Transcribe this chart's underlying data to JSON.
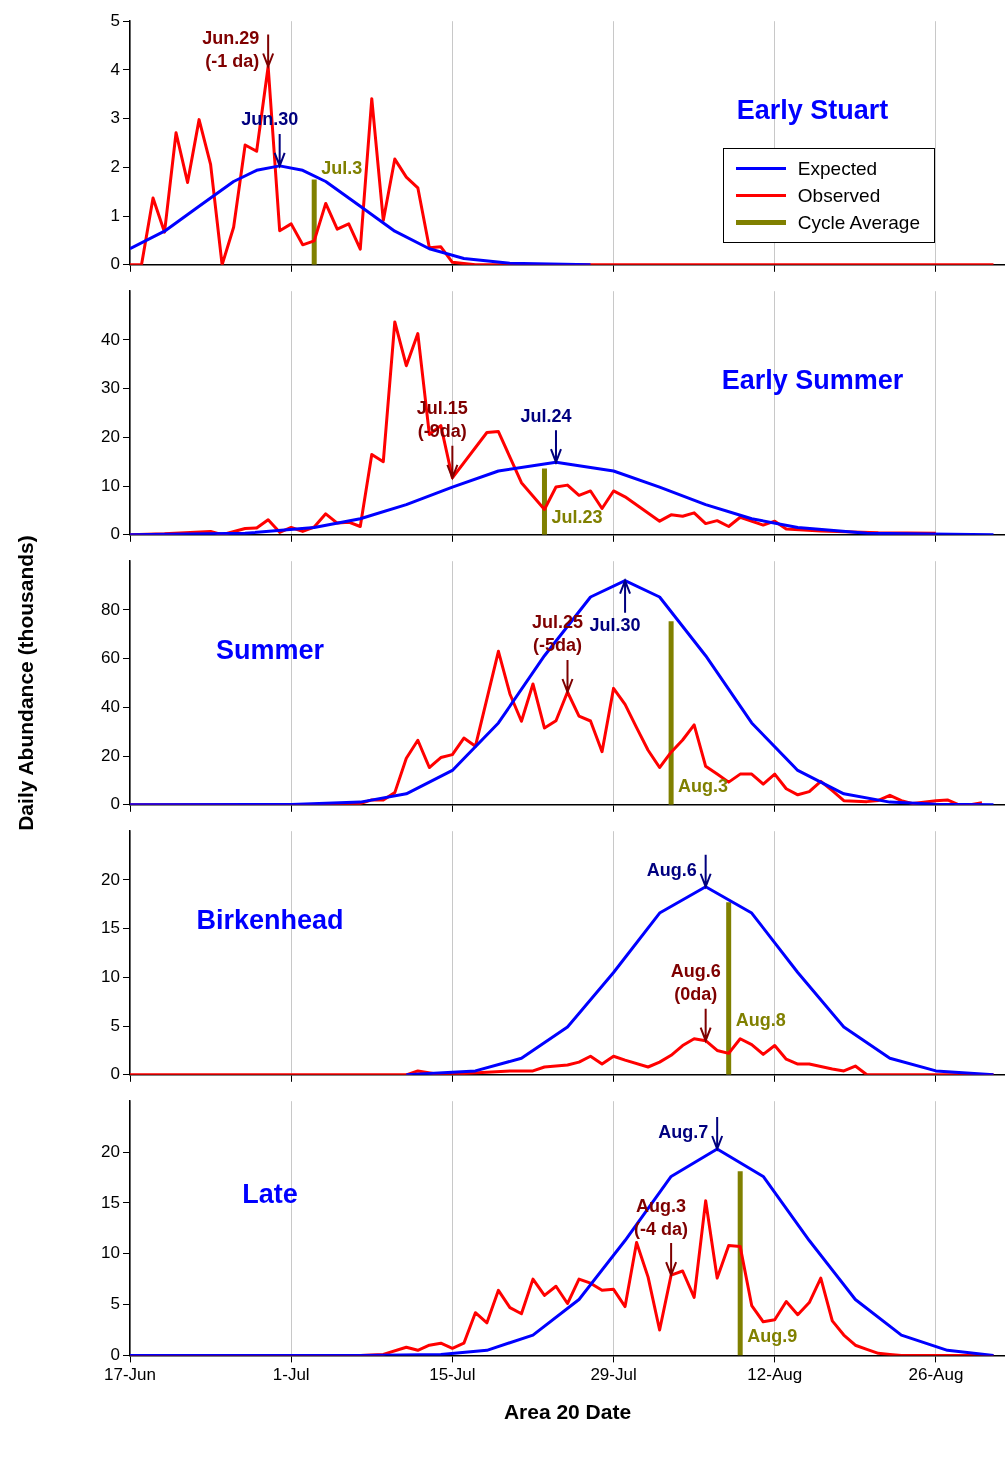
{
  "chart_data": [
    {
      "type": "line",
      "title": "Early Stuart",
      "legend": "right",
      "grid": "x",
      "marker": "none",
      "tick_labels": "y",
      "xlim": [
        "--06-17",
        "--09-01"
      ],
      "xticks": [
        {
          "value": "--06-17",
          "label": null
        },
        {
          "value": "--07-01",
          "label": null
        },
        {
          "value": "--07-15",
          "label": null
        },
        {
          "value": "--07-29",
          "label": null
        },
        {
          "value": "--08-12",
          "label": null
        },
        {
          "value": "--08-26",
          "label": null
        }
      ],
      "ylim": [
        0,
        5
      ],
      "yticks": [
        0,
        1,
        2,
        3,
        4,
        5
      ],
      "series": [
        {
          "name": "Expected",
          "color": "#0000ff",
          "x": [
            "--06-17",
            "--06-20",
            "--06-23",
            "--06-26",
            "--06-28",
            "--06-30",
            "--07-02",
            "--07-04",
            "--07-07",
            "--07-10",
            "--07-13",
            "--07-16",
            "--07-20",
            "--07-27"
          ],
          "values": [
            0.33,
            0.69,
            1.2,
            1.71,
            1.94,
            2.03,
            1.94,
            1.71,
            1.2,
            0.69,
            0.33,
            0.13,
            0.03,
            0
          ]
        },
        {
          "name": "Observed",
          "color": "#ff0000",
          "x": [
            "--06-17",
            "--06-18",
            "--06-19",
            "--06-20",
            "--06-21",
            "--06-22",
            "--06-23",
            "--06-24",
            "--06-25",
            "--06-26",
            "--06-27",
            "--06-28",
            "--06-29",
            "--06-30",
            "--07-01",
            "--07-02",
            "--07-03",
            "--07-04",
            "--07-05",
            "--07-06",
            "--07-07",
            "--07-08",
            "--07-09",
            "--07-10",
            "--07-11",
            "--07-12",
            "--07-13",
            "--07-14",
            "--07-15",
            "--07-17",
            "--08-31"
          ],
          "values": [
            0,
            0,
            1.37,
            0.67,
            2.71,
            1.69,
            2.98,
            2.06,
            0,
            0.77,
            2.46,
            2.33,
            4.07,
            0.7,
            0.84,
            0.41,
            0.49,
            1.26,
            0.73,
            0.84,
            0.32,
            3.41,
            0.91,
            2.17,
            1.8,
            1.58,
            0.35,
            0.37,
            0.05,
            0,
            0
          ]
        },
        {
          "name": "Cycle Average",
          "color": "#808000",
          "x": [
            "--07-03",
            "--07-03"
          ],
          "values": [
            0,
            1.75
          ]
        }
      ],
      "annotations": [
        {
          "text": "Jun.30",
          "x": "--06-30",
          "y": 2.03
        },
        {
          "text": "Jun.29\n(-1 da)",
          "x": "--06-29",
          "y": 4.07
        },
        {
          "text": "Jul.3",
          "x": "--07-03",
          "y": 1.75
        }
      ]
    },
    {
      "type": "line",
      "title": "Early Summer",
      "grid": "x",
      "marker": "none",
      "tick_labels": "y",
      "xlim": [
        "--06-17",
        "--09-01"
      ],
      "xticks": [
        {
          "value": "--06-17",
          "label": null
        },
        {
          "value": "--07-01",
          "label": null
        },
        {
          "value": "--07-15",
          "label": null
        },
        {
          "value": "--07-29",
          "label": null
        },
        {
          "value": "--08-12",
          "label": null
        },
        {
          "value": "--08-26",
          "label": null
        }
      ],
      "ylim": [
        0,
        50
      ],
      "yticks": [
        0,
        10,
        20,
        30,
        40
      ],
      "series": [
        {
          "color": "#0000ff",
          "x": [
            "--06-17",
            "--06-27",
            "--07-03",
            "--07-07",
            "--07-11",
            "--07-15",
            "--07-19",
            "--07-24",
            "--07-29",
            "--08-02",
            "--08-06",
            "--08-10",
            "--08-14",
            "--08-20",
            "--08-31"
          ],
          "values": [
            0,
            0.3,
            1.5,
            3.3,
            6.2,
            9.8,
            13.1,
            14.9,
            13.1,
            9.8,
            6.2,
            3.3,
            1.5,
            0.3,
            0
          ]
        },
        {
          "color": "#ff0000",
          "x": [
            "--06-17",
            "--06-20",
            "--06-24",
            "--06-25",
            "--06-27",
            "--06-28",
            "--06-29",
            "--06-30",
            "--07-01",
            "--07-02",
            "--07-03",
            "--07-04",
            "--07-05",
            "--07-06",
            "--07-07",
            "--07-08",
            "--07-09",
            "--07-10",
            "--07-11",
            "--07-12",
            "--07-13",
            "--07-14",
            "--07-15",
            "--07-18",
            "--07-19",
            "--07-21",
            "--07-23",
            "--07-24",
            "--07-25",
            "--07-26",
            "--07-27",
            "--07-28",
            "--07-29",
            "--07-30",
            "--08-02",
            "--08-03",
            "--08-04",
            "--08-05",
            "--08-06",
            "--08-07",
            "--08-08",
            "--08-09",
            "--08-11",
            "--08-12",
            "--08-13",
            "--08-16",
            "--08-21",
            "--08-26"
          ],
          "values": [
            0,
            0.2,
            0.7,
            0,
            1.3,
            1.4,
            3.1,
            0.5,
            1.5,
            0.7,
            1.6,
            4.3,
            2.4,
            2.6,
            1.7,
            16.5,
            15,
            43.7,
            34.7,
            41.3,
            20.6,
            22.4,
            11.7,
            21,
            21.2,
            10.7,
            5.2,
            9.8,
            10.2,
            8.1,
            9,
            5.4,
            9,
            7.8,
            2.8,
            4.1,
            3.8,
            4.5,
            2.3,
            2.9,
            1.7,
            3.6,
            2,
            2.8,
            1.2,
            0.8,
            0.4,
            0.3
          ]
        },
        {
          "color": "#808000",
          "x": [
            "--07-23",
            "--07-23"
          ],
          "values": [
            0,
            13.6
          ]
        }
      ],
      "annotations": [
        {
          "text": "Jul.24",
          "x": "--07-24",
          "y": 14.9
        },
        {
          "text": "Jul.15\n(-9da)",
          "x": "--07-15",
          "y": 11.7
        },
        {
          "text": "Jul.23",
          "x": "--07-23",
          "y": 1.1
        }
      ]
    },
    {
      "type": "line",
      "title": "Summer",
      "ylabel": "Daily Abundance (thousands)",
      "grid": "x",
      "marker": "none",
      "tick_labels": "y",
      "xlim": [
        "--06-17",
        "--09-01"
      ],
      "xticks": [
        {
          "value": "--06-17",
          "label": null
        },
        {
          "value": "--07-01",
          "label": null
        },
        {
          "value": "--07-15",
          "label": null
        },
        {
          "value": "--07-29",
          "label": null
        },
        {
          "value": "--08-12",
          "label": null
        },
        {
          "value": "--08-26",
          "label": null
        }
      ],
      "ylim": [
        0,
        100
      ],
      "yticks": [
        0,
        20,
        40,
        60,
        80
      ],
      "series": [
        {
          "color": "#0000ff",
          "x": [
            "--06-17",
            "--07-01",
            "--07-07",
            "--07-11",
            "--07-15",
            "--07-19",
            "--07-23",
            "--07-27",
            "--07-30",
            "--08-02",
            "--08-06",
            "--08-10",
            "--08-14",
            "--08-18",
            "--08-22",
            "--08-26",
            "--08-31"
          ],
          "values": [
            0,
            0.1,
            1.1,
            4.5,
            14.1,
            33.6,
            61.2,
            85.3,
            92,
            85.3,
            61.2,
            33.6,
            14.1,
            4.5,
            1.1,
            0.2,
            0
          ]
        },
        {
          "color": "#ff0000",
          "x": [
            "--06-17",
            "--07-02",
            "--07-07",
            "--07-08",
            "--07-09",
            "--07-10",
            "--07-11",
            "--07-12",
            "--07-13",
            "--07-14",
            "--07-15",
            "--07-16",
            "--07-17",
            "--07-19",
            "--07-20",
            "--07-21",
            "--07-22",
            "--07-23",
            "--07-24",
            "--07-25",
            "--07-26",
            "--07-27",
            "--07-28",
            "--07-29",
            "--07-30",
            "--07-31",
            "--08-01",
            "--08-02",
            "--08-03",
            "--08-04",
            "--08-05",
            "--08-06",
            "--08-07",
            "--08-08",
            "--08-09",
            "--08-10",
            "--08-11",
            "--08-12",
            "--08-13",
            "--08-14",
            "--08-15",
            "--08-16",
            "--08-17",
            "--08-18",
            "--08-20",
            "--08-21",
            "--08-22",
            "--08-23",
            "--08-24",
            "--08-26",
            "--08-27",
            "--08-28",
            "--08-29",
            "--08-30"
          ],
          "values": [
            0,
            0,
            0.5,
            2,
            2,
            5,
            19.1,
            26.5,
            15.3,
            19.4,
            20.6,
            27.4,
            24,
            63,
            45.5,
            34.3,
            49.6,
            31.5,
            34.5,
            46.3,
            36.4,
            34.4,
            21.8,
            47.8,
            41.2,
            31.7,
            22.4,
            15.3,
            21.6,
            26.6,
            32.8,
            15.8,
            12.6,
            9.3,
            12.6,
            12.6,
            8.5,
            12.6,
            6.6,
            4.1,
            5.4,
            9.6,
            5.8,
            1.7,
            1.3,
            1.8,
            3.9,
            1.7,
            0.5,
            1.7,
            2,
            0,
            0,
            0.8
          ]
        },
        {
          "color": "#808000",
          "x": [
            "--08-03",
            "--08-03"
          ],
          "values": [
            0,
            75.3
          ]
        }
      ],
      "annotations": [
        {
          "text": "Jul.30",
          "x": "--07-30",
          "y": 92
        },
        {
          "text": "Jul.25\n(-5da)",
          "x": "--07-25",
          "y": 46.3
        },
        {
          "text": "Aug.3",
          "x": "--08-03",
          "y": 2.6
        }
      ]
    },
    {
      "type": "line",
      "title": "Birkenhead",
      "grid": "x",
      "marker": "none",
      "tick_labels": "y",
      "xlim": [
        "--06-17",
        "--09-01"
      ],
      "xticks": [
        {
          "value": "--06-17",
          "label": null
        },
        {
          "value": "--07-01",
          "label": null
        },
        {
          "value": "--07-15",
          "label": null
        },
        {
          "value": "--07-29",
          "label": null
        },
        {
          "value": "--08-12",
          "label": null
        },
        {
          "value": "--08-26",
          "label": null
        }
      ],
      "ylim": [
        0,
        25
      ],
      "yticks": [
        0,
        5,
        10,
        15,
        20
      ],
      "series": [
        {
          "color": "#0000ff",
          "x": [
            "--07-11",
            "--07-17",
            "--07-21",
            "--07-25",
            "--07-29",
            "--08-02",
            "--08-06",
            "--08-10",
            "--08-14",
            "--08-18",
            "--08-22",
            "--08-26",
            "--08-31"
          ],
          "values": [
            0,
            0.4,
            1.7,
            4.9,
            10.5,
            16.6,
            19.3,
            16.6,
            10.5,
            4.9,
            1.7,
            0.4,
            0
          ]
        },
        {
          "color": "#ff0000",
          "x": [
            "--06-17",
            "--07-11",
            "--07-12",
            "--07-14",
            "--07-20",
            "--07-22",
            "--07-23",
            "--07-25",
            "--07-26",
            "--07-27",
            "--07-28",
            "--07-29",
            "--07-30",
            "--08-01",
            "--08-02",
            "--08-03",
            "--08-04",
            "--08-05",
            "--08-06",
            "--08-07",
            "--08-08",
            "--08-09",
            "--08-10",
            "--08-11",
            "--08-12",
            "--08-13",
            "--08-14",
            "--08-15",
            "--08-17",
            "--08-18",
            "--08-19",
            "--08-20",
            "--08-31"
          ],
          "values": [
            0,
            0,
            0.4,
            0,
            0.4,
            0.4,
            0.8,
            1,
            1.3,
            1.9,
            1.1,
            1.9,
            1.5,
            0.8,
            1.3,
            2,
            3,
            3.7,
            3.5,
            2.5,
            2.2,
            3.7,
            3.1,
            2.1,
            3,
            1.6,
            1.1,
            1.1,
            0.6,
            0.4,
            0.9,
            0,
            0
          ]
        },
        {
          "color": "#808000",
          "x": [
            "--08-08",
            "--08-08"
          ],
          "values": [
            0,
            17.7
          ]
        }
      ],
      "annotations": [
        {
          "text": "Aug.6",
          "x": "--08-06",
          "y": 19.3
        },
        {
          "text": "Aug.6\n(0da)",
          "x": "--08-06",
          "y": 3.5
        },
        {
          "text": "Aug.8",
          "x": "--08-08",
          "y": 4.4
        }
      ]
    },
    {
      "type": "line",
      "title": "Late",
      "xlabel": "Area 20 Date",
      "grid": "x",
      "marker": "none",
      "xlim": [
        "--06-17",
        "--09-01"
      ],
      "xticks": [
        {
          "value": "--06-17",
          "label": "17-Jun"
        },
        {
          "value": "--07-01",
          "label": "1-Jul"
        },
        {
          "value": "--07-15",
          "label": "15-Jul"
        },
        {
          "value": "--07-29",
          "label": "29-Jul"
        },
        {
          "value": "--08-12",
          "label": "12-Aug"
        },
        {
          "value": "--08-26",
          "label": "26-Aug"
        }
      ],
      "ylim": [
        0,
        25
      ],
      "yticks": [
        0,
        5,
        10,
        15,
        20
      ],
      "series": [
        {
          "color": "#0000ff",
          "x": [
            "--06-17",
            "--07-07",
            "--07-14",
            "--07-18",
            "--07-22",
            "--07-26",
            "--07-30",
            "--08-03",
            "--08-07",
            "--08-11",
            "--08-15",
            "--08-19",
            "--08-23",
            "--08-27",
            "--08-31"
          ],
          "values": [
            0,
            0,
            0.1,
            0.5,
            2,
            5.5,
            11.3,
            17.6,
            20.3,
            17.6,
            11.3,
            5.5,
            2,
            0.5,
            0
          ]
        },
        {
          "color": "#ff0000",
          "x": [
            "--06-17",
            "--07-07",
            "--07-09",
            "--07-11",
            "--07-12",
            "--07-13",
            "--07-14",
            "--07-15",
            "--07-16",
            "--07-17",
            "--07-18",
            "--07-19",
            "--07-20",
            "--07-21",
            "--07-22",
            "--07-23",
            "--07-24",
            "--07-25",
            "--07-26",
            "--07-27",
            "--07-28",
            "--07-29",
            "--07-30",
            "--07-31",
            "--08-01",
            "--08-02",
            "--08-03",
            "--08-04",
            "--08-05",
            "--08-06",
            "--08-07",
            "--08-08",
            "--08-09",
            "--08-10",
            "--08-11",
            "--08-12",
            "--08-13",
            "--08-14",
            "--08-15",
            "--08-16",
            "--08-17",
            "--08-18",
            "--08-19",
            "--08-20",
            "--08-21",
            "--08-22",
            "--08-23",
            "--08-31"
          ],
          "values": [
            0,
            0,
            0.1,
            0.8,
            0.5,
            1,
            1.2,
            0.7,
            1.2,
            4.2,
            3.2,
            6.4,
            4.7,
            4.1,
            7.5,
            5.9,
            6.8,
            5.1,
            7.5,
            7.1,
            6.4,
            6.5,
            4.8,
            11.1,
            7.7,
            2.5,
            7.9,
            8.3,
            5.7,
            15.2,
            7.6,
            10.8,
            10.7,
            4.9,
            3.3,
            3.5,
            5.3,
            4,
            5.2,
            7.6,
            3.4,
            2,
            1,
            0.6,
            0.2,
            0.1,
            0,
            0
          ]
        },
        {
          "color": "#808000",
          "x": [
            "--08-09",
            "--08-09"
          ],
          "values": [
            0,
            18.1
          ]
        }
      ],
      "annotations": [
        {
          "text": "Aug.7",
          "x": "--08-07",
          "y": 20.3
        },
        {
          "text": "Aug.3\n(-4 da)",
          "x": "--08-03",
          "y": 7.9
        },
        {
          "text": "Aug.9",
          "x": "--08-09",
          "y": 0.7
        }
      ]
    }
  ]
}
